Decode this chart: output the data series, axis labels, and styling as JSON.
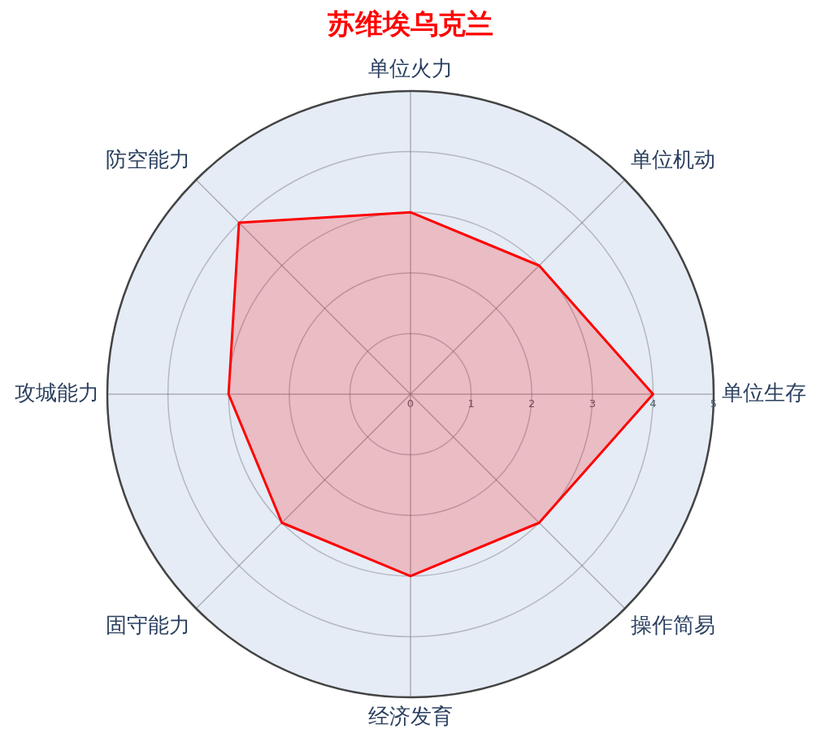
{
  "chart_data": {
    "type": "radar",
    "title": "苏维埃乌克兰",
    "categories": [
      "单位火力",
      "单位机动",
      "单位生存",
      "操作简易",
      "经济发育",
      "固守能力",
      "攻城能力",
      "防空能力"
    ],
    "series": [
      {
        "color": "#ff0000",
        "values": [
          3,
          3,
          4,
          3,
          3,
          3,
          3,
          4
        ]
      }
    ],
    "ylim": [
      0,
      5
    ],
    "yticks": [
      0,
      1,
      2,
      3,
      4,
      5
    ],
    "grid": true,
    "legend": false
  }
}
